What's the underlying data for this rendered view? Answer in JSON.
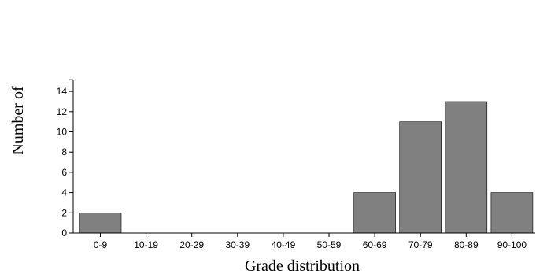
{
  "chart_data": {
    "type": "bar",
    "categories": [
      "0-9",
      "10-19",
      "20-29",
      "30-39",
      "40-49",
      "50-59",
      "60-69",
      "70-79",
      "80-89",
      "90-100"
    ],
    "values": [
      2,
      0,
      0,
      0,
      0,
      0,
      4,
      11,
      13,
      4
    ],
    "xlabel": "Grade distribution",
    "ylabel": "Number of",
    "ylim": [
      0,
      15
    ],
    "yticks": [
      0,
      2,
      4,
      6,
      8,
      10,
      12,
      14
    ],
    "grid": false,
    "bar_color": "#808080"
  }
}
